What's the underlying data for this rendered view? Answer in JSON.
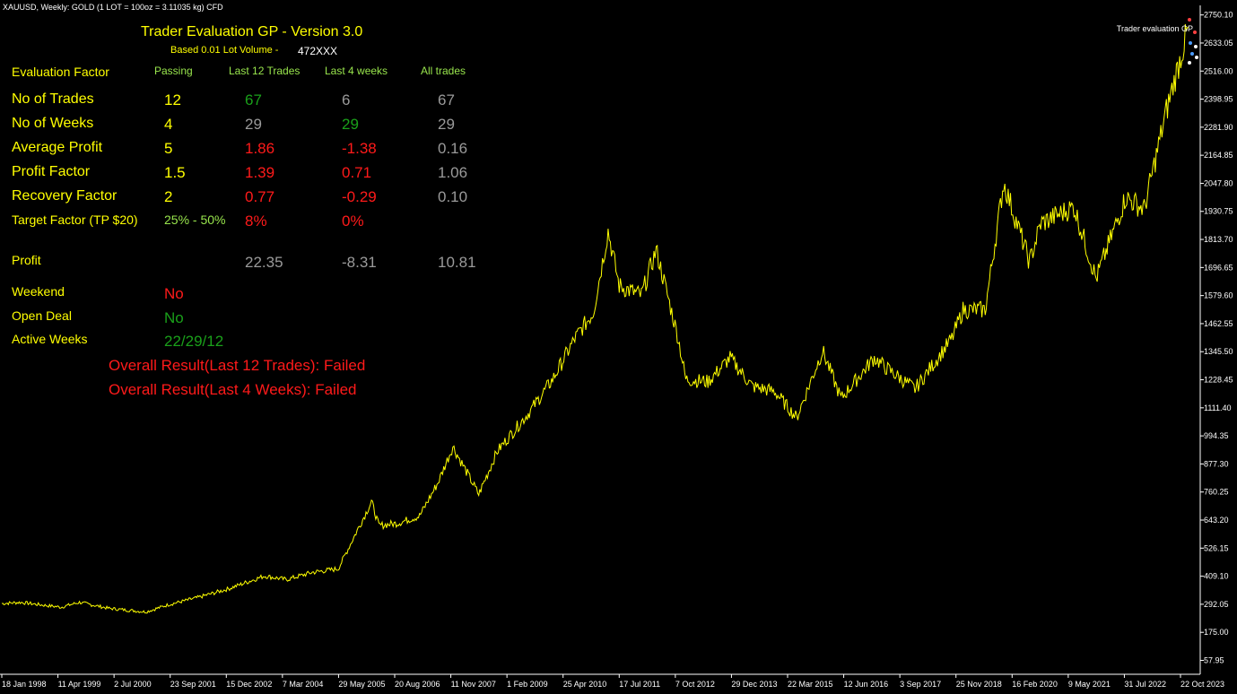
{
  "window": {
    "symbol_caption": "XAUUSD, Weekly:  GOLD (1 LOT = 100oz = 3.11035 kg) CFD",
    "indicator_label": "Trader evaluation GP"
  },
  "panel": {
    "title": "Trader Evaluation GP - Version 3.0",
    "subtitle": "Based 0.01 Lot Volume -",
    "account": "472XXX",
    "headers": [
      "Evaluation Factor",
      "Passing",
      "Last 12 Trades",
      "Last 4 weeks",
      "All trades"
    ],
    "rows": [
      {
        "label": "No of Trades",
        "passing": "12",
        "last12": "67",
        "last4w": "6",
        "all": "67",
        "c12": "#1aa01a",
        "c4": "#9a9a9a"
      },
      {
        "label": "No of Weeks",
        "passing": "4",
        "last12": "29",
        "last4w": "29",
        "all": "29",
        "c12": "#9a9a9a",
        "c4": "#1aa01a"
      },
      {
        "label": "Average Profit",
        "passing": "5",
        "last12": "1.86",
        "last4w": "-1.38",
        "all": "0.16",
        "c12": "#ff1a1a",
        "c4": "#ff1a1a"
      },
      {
        "label": "Profit Factor",
        "passing": "1.5",
        "last12": "1.39",
        "last4w": "0.71",
        "all": "1.06",
        "c12": "#ff1a1a",
        "c4": "#ff1a1a"
      },
      {
        "label": "Recovery Factor",
        "passing": "2",
        "last12": "0.77",
        "last4w": "-0.29",
        "all": "0.10",
        "c12": "#ff1a1a",
        "c4": "#ff1a1a"
      }
    ],
    "target": {
      "label": "Target Factor (TP $20)",
      "passing": "25% - 50%",
      "last12": "8%",
      "last4w": "0%"
    },
    "profit": {
      "label": "Profit",
      "last12": "22.35",
      "last4w": "-8.31",
      "all": "10.81"
    },
    "weekend": {
      "label": "Weekend",
      "value": "No"
    },
    "open_deal": {
      "label": "Open Deal",
      "value": "No"
    },
    "active_weeks": {
      "label": "Active Weeks",
      "value": "22/29/12"
    },
    "result_trades": "Overall Result(Last 12 Trades): Failed",
    "result_weeks": "Overall Result(Last 4 Weeks): Failed",
    "colors": {
      "yellow": "#ffff00",
      "green_light": "#99e64d",
      "green": "#1aa01a",
      "red": "#ff1a1a",
      "gray": "#9a9a9a"
    }
  },
  "chart_data": {
    "type": "line",
    "title": "XAUUSD, Weekly",
    "series_color": "#ffff00",
    "y_ticks": [
      "2750.10",
      "2633.05",
      "2516.00",
      "2398.95",
      "2281.90",
      "2164.85",
      "2047.80",
      "1930.75",
      "1813.70",
      "1696.65",
      "1579.60",
      "1462.55",
      "1345.50",
      "1228.45",
      "1111.40",
      "994.35",
      "877.30",
      "760.25",
      "643.20",
      "526.15",
      "409.10",
      "292.05",
      "175.00",
      "57.95"
    ],
    "x_ticks": [
      "18 Jan 1998",
      "11 Apr 1999",
      "2 Jul 2000",
      "23 Sep 2001",
      "15 Dec 2002",
      "7 Mar 2004",
      "29 May 2005",
      "20 Aug 2006",
      "11 Nov 2007",
      "1 Feb 2009",
      "25 Apr 2010",
      "17 Jul 2011",
      "7 Oct 2012",
      "29 Dec 2013",
      "22 Mar 2015",
      "12 Jun 2016",
      "3 Sep 2017",
      "25 Nov 2018",
      "16 Feb 2020",
      "9 May 2021",
      "31 Jul 2022",
      "22 Oct 2023"
    ],
    "ylim": [
      0,
      2790
    ],
    "x": [
      "1998-01",
      "1998-06",
      "1999-01",
      "1999-05",
      "1999-10",
      "2000-06",
      "2001-04",
      "2001-10",
      "2002-06",
      "2003-02",
      "2003-12",
      "2004-06",
      "2005-01",
      "2005-08",
      "2006-05",
      "2006-07",
      "2006-12",
      "2007-06",
      "2007-11",
      "2008-03",
      "2008-10",
      "2009-03",
      "2009-12",
      "2010-06",
      "2010-12",
      "2011-05",
      "2011-09",
      "2011-12",
      "2012-06",
      "2012-10",
      "2013-04",
      "2013-06",
      "2013-12",
      "2014-06",
      "2014-12",
      "2015-06",
      "2015-12",
      "2016-07",
      "2016-12",
      "2017-09",
      "2017-12",
      "2018-08",
      "2019-06",
      "2019-09",
      "2020-03",
      "2020-08",
      "2021-03",
      "2021-06",
      "2022-03",
      "2022-09",
      "2023-05",
      "2023-10",
      "2024-04",
      "2024-10"
    ],
    "values": [
      295,
      300,
      287,
      280,
      300,
      275,
      260,
      290,
      320,
      355,
      410,
      395,
      425,
      440,
      720,
      620,
      630,
      660,
      800,
      950,
      750,
      930,
      1100,
      1230,
      1400,
      1510,
      1850,
      1620,
      1580,
      1770,
      1400,
      1230,
      1220,
      1320,
      1200,
      1180,
      1070,
      1350,
      1150,
      1320,
      1280,
      1190,
      1400,
      1520,
      1520,
      2050,
      1720,
      1880,
      1950,
      1650,
      1990,
      1940,
      2350,
      2700
    ]
  }
}
